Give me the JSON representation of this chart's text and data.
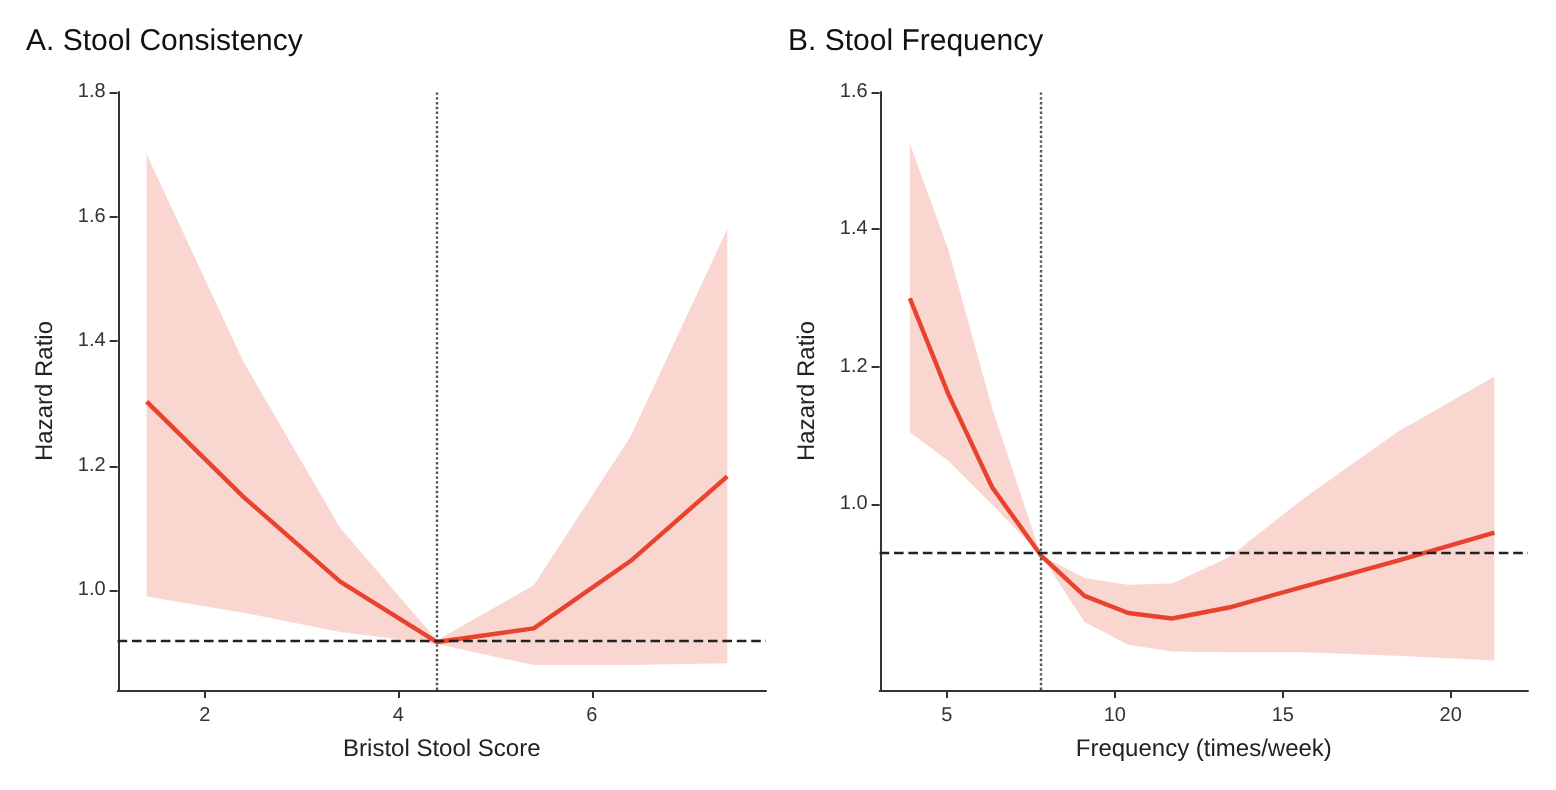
{
  "chart_data": [
    {
      "type": "line",
      "title": "A. Stool Consistency",
      "xlabel": "Bristol Stool Score",
      "ylabel": "Hazard Ratio",
      "xlim": [
        1.1,
        7.8
      ],
      "xticks": [
        2,
        4,
        6
      ],
      "ylim": [
        0.84,
        1.8
      ],
      "yticks": [
        {
          "value": 1,
          "label": "1.0"
        },
        {
          "value": 1.2,
          "label": "1.2"
        },
        {
          "value": 1.4,
          "label": "1.4"
        },
        {
          "value": 1.6,
          "label": "1.6"
        },
        {
          "value": 1.8,
          "label": "1.8"
        }
      ],
      "grid": false,
      "marker": "none",
      "series": [
        {
          "color": "#e8432e",
          "x": [
            1.4,
            2.4,
            3.4,
            4.4,
            5.4,
            6.4,
            7.4
          ],
          "values": [
            1.303,
            1.15,
            1.014,
            0.917,
            0.939,
            1.047,
            1.183
          ],
          "lower": [
            0.99,
            0.964,
            0.933,
            0.914,
            0.88,
            0.88,
            0.883
          ],
          "upper": [
            1.7,
            1.367,
            1.1,
            0.92,
            1.008,
            1.247,
            1.58
          ]
        }
      ],
      "ref_lines": [
        {
          "axis": "x",
          "value": 4.4,
          "line_style": "dotted",
          "color": "#555555"
        },
        {
          "axis": "y",
          "value": 0.917,
          "line_style": "dashed",
          "color": "#222222"
        }
      ]
    },
    {
      "type": "line",
      "title": "B. Stool Frequency",
      "xlabel": "Frequency (times/week)",
      "ylabel": "Hazard Ratio",
      "xlim": [
        3,
        22.3
      ],
      "xticks": [
        5,
        10,
        15,
        20
      ],
      "ylim": [
        0.73,
        1.6
      ],
      "yticks": [
        {
          "value": 1,
          "label": "1.0"
        },
        {
          "value": 1.2,
          "label": "1.2"
        },
        {
          "value": 1.4,
          "label": "1.4"
        },
        {
          "value": 1.6,
          "label": "1.6"
        }
      ],
      "grid": false,
      "marker": "none",
      "series": [
        {
          "color": "#e8432e",
          "x": [
            3.9,
            5.05,
            6.35,
            7.8,
            9.1,
            10.4,
            11.7,
            13.4,
            15.6,
            18.4,
            21.3
          ],
          "values": [
            1.3,
            1.16,
            1.025,
            0.926,
            0.867,
            0.842,
            0.834,
            0.85,
            0.88,
            0.918,
            0.959
          ],
          "lower": [
            1.105,
            1.063,
            1.0,
            0.926,
            0.829,
            0.796,
            0.786,
            0.785,
            0.785,
            0.78,
            0.773
          ],
          "upper": [
            1.525,
            1.37,
            1.14,
            0.926,
            0.893,
            0.883,
            0.885,
            0.923,
            1.008,
            1.105,
            1.186
          ]
        }
      ],
      "ref_lines": [
        {
          "axis": "x",
          "value": 7.8,
          "line_style": "dotted",
          "color": "#555555"
        },
        {
          "axis": "y",
          "value": 0.926,
          "line_style": "dashed",
          "color": "#222222"
        }
      ]
    }
  ]
}
